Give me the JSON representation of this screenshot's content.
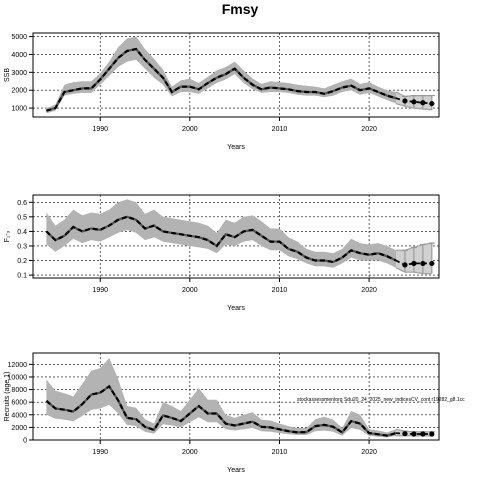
{
  "figure": {
    "title": "Fmsy",
    "annotation": "stockassessmentorg Sdu20_24_2025_new_indicesCV_cont r19282_g8.1cc"
  },
  "chart_data": [
    {
      "type": "line",
      "panel": "ssb",
      "xlabel": "Years",
      "ylabel": "SSB",
      "xlim": [
        1982.5,
        2027.8
      ],
      "ylim": [
        500,
        5200
      ],
      "xticks": [
        1990,
        2000,
        2010,
        2020
      ],
      "yticks": [
        1000,
        2000,
        3000,
        4000,
        5000
      ],
      "grid": true,
      "x": [
        1984,
        1985,
        1986,
        1987,
        1988,
        1989,
        1990,
        1991,
        1992,
        1993,
        1994,
        1995,
        1996,
        1997,
        1998,
        1999,
        2000,
        2001,
        2002,
        2003,
        2004,
        2005,
        2006,
        2007,
        2008,
        2009,
        2010,
        2011,
        2012,
        2013,
        2014,
        2015,
        2016,
        2017,
        2018,
        2019,
        2020,
        2021,
        2022,
        2023
      ],
      "series": [
        {
          "role": "estimate",
          "values": [
            850,
            1000,
            1900,
            2000,
            2100,
            2100,
            2600,
            3200,
            3800,
            4200,
            4300,
            3700,
            3200,
            2700,
            1900,
            2200,
            2200,
            2050,
            2400,
            2700,
            2900,
            3200,
            2700,
            2300,
            2050,
            2150,
            2100,
            2050,
            1950,
            1900,
            1900,
            1800,
            1950,
            2150,
            2250,
            2000,
            2100,
            1900,
            1700,
            1550
          ]
        },
        {
          "role": "lower",
          "values": [
            700,
            850,
            1700,
            1800,
            1850,
            1850,
            2300,
            2800,
            3300,
            3600,
            3700,
            3200,
            2700,
            2300,
            1650,
            1900,
            1900,
            1800,
            2100,
            2400,
            2600,
            2900,
            2400,
            2050,
            1850,
            1900,
            1900,
            1850,
            1750,
            1700,
            1700,
            1600,
            1700,
            1900,
            2000,
            1750,
            1850,
            1650,
            1450,
            1250
          ]
        },
        {
          "role": "upper",
          "values": [
            1000,
            1200,
            2300,
            2450,
            2500,
            2500,
            2950,
            3600,
            4400,
            4900,
            5000,
            4300,
            3750,
            3150,
            2200,
            2550,
            2650,
            2400,
            2750,
            3100,
            3300,
            3600,
            3100,
            2650,
            2350,
            2500,
            2450,
            2400,
            2300,
            2250,
            2200,
            2100,
            2300,
            2500,
            2650,
            2350,
            2450,
            2200,
            2000,
            1900
          ]
        }
      ],
      "projection": {
        "x": [
          2024,
          2025,
          2026,
          2027
        ],
        "values": [
          1400,
          1350,
          1300,
          1250
        ],
        "lower": [
          1100,
          1000,
          950,
          900
        ],
        "upper": [
          1650,
          1700,
          1700,
          1700
        ]
      }
    },
    {
      "type": "line",
      "panel": "fbar",
      "xlabel": "Years",
      "ylabel": "F₁-₃",
      "xlim": [
        1982.5,
        2027.8
      ],
      "ylim": [
        0.08,
        0.65
      ],
      "xticks": [
        1990,
        2000,
        2010,
        2020
      ],
      "yticks": [
        0.1,
        0.2,
        0.3,
        0.4,
        0.5,
        0.6
      ],
      "grid": true,
      "x": [
        1984,
        1985,
        1986,
        1987,
        1988,
        1989,
        1990,
        1991,
        1992,
        1993,
        1994,
        1995,
        1996,
        1997,
        1998,
        1999,
        2000,
        2001,
        2002,
        2003,
        2004,
        2005,
        2006,
        2007,
        2008,
        2009,
        2010,
        2011,
        2012,
        2013,
        2014,
        2015,
        2016,
        2017,
        2018,
        2019,
        2020,
        2021,
        2022,
        2023
      ],
      "series": [
        {
          "role": "estimate",
          "values": [
            0.4,
            0.34,
            0.37,
            0.43,
            0.4,
            0.42,
            0.41,
            0.44,
            0.48,
            0.5,
            0.48,
            0.42,
            0.44,
            0.4,
            0.39,
            0.38,
            0.37,
            0.36,
            0.34,
            0.3,
            0.38,
            0.36,
            0.4,
            0.41,
            0.37,
            0.33,
            0.33,
            0.28,
            0.26,
            0.22,
            0.2,
            0.2,
            0.19,
            0.22,
            0.27,
            0.25,
            0.24,
            0.25,
            0.23,
            0.2
          ]
        },
        {
          "role": "lower",
          "values": [
            0.31,
            0.26,
            0.3,
            0.35,
            0.32,
            0.34,
            0.33,
            0.36,
            0.39,
            0.41,
            0.39,
            0.34,
            0.36,
            0.33,
            0.32,
            0.31,
            0.3,
            0.29,
            0.28,
            0.25,
            0.31,
            0.3,
            0.33,
            0.34,
            0.3,
            0.27,
            0.27,
            0.23,
            0.21,
            0.18,
            0.16,
            0.16,
            0.15,
            0.18,
            0.22,
            0.2,
            0.2,
            0.2,
            0.18,
            0.15
          ]
        },
        {
          "role": "upper",
          "values": [
            0.53,
            0.44,
            0.48,
            0.55,
            0.51,
            0.53,
            0.52,
            0.55,
            0.6,
            0.62,
            0.6,
            0.52,
            0.55,
            0.5,
            0.49,
            0.48,
            0.47,
            0.46,
            0.44,
            0.39,
            0.48,
            0.46,
            0.5,
            0.51,
            0.47,
            0.42,
            0.42,
            0.36,
            0.33,
            0.28,
            0.26,
            0.26,
            0.25,
            0.28,
            0.35,
            0.32,
            0.31,
            0.32,
            0.3,
            0.27
          ]
        }
      ],
      "projection": {
        "x": [
          2024,
          2025,
          2026,
          2027
        ],
        "values": [
          0.17,
          0.18,
          0.18,
          0.18
        ],
        "lower": [
          0.12,
          0.12,
          0.11,
          0.11
        ],
        "upper": [
          0.27,
          0.29,
          0.31,
          0.32
        ]
      }
    },
    {
      "type": "line",
      "panel": "recruits",
      "xlabel": "Years",
      "ylabel": "Recruits (age 1)",
      "xlim": [
        1982.5,
        2027.8
      ],
      "ylim": [
        0,
        13800
      ],
      "xticks": [
        1990,
        2000,
        2010,
        2020
      ],
      "yticks": [
        0,
        2000,
        4000,
        6000,
        8000,
        10000,
        12000
      ],
      "grid": true,
      "x": [
        1984,
        1985,
        1986,
        1987,
        1988,
        1989,
        1990,
        1991,
        1992,
        1993,
        1994,
        1995,
        1996,
        1997,
        1998,
        1999,
        2000,
        2001,
        2002,
        2003,
        2004,
        2005,
        2006,
        2007,
        2008,
        2009,
        2010,
        2011,
        2012,
        2013,
        2014,
        2015,
        2016,
        2017,
        2018,
        2019,
        2020,
        2021,
        2022,
        2023
      ],
      "series": [
        {
          "role": "estimate",
          "values": [
            6200,
            5000,
            4800,
            4500,
            5700,
            7200,
            7500,
            8500,
            6300,
            3500,
            3300,
            2100,
            1600,
            3900,
            3500,
            3000,
            4200,
            5400,
            4200,
            4200,
            2600,
            2300,
            2600,
            2900,
            2100,
            2000,
            1700,
            1400,
            1200,
            1250,
            2200,
            2400,
            2100,
            1200,
            3000,
            2600,
            1100,
            900,
            700,
            1100
          ]
        },
        {
          "role": "lower",
          "values": [
            4000,
            3400,
            3200,
            3000,
            3800,
            4800,
            5000,
            5600,
            4200,
            2400,
            2200,
            1300,
            1000,
            2500,
            2300,
            2000,
            2800,
            3600,
            2800,
            2800,
            1700,
            1500,
            1700,
            1900,
            1400,
            1300,
            1100,
            900,
            800,
            800,
            1400,
            1500,
            1300,
            700,
            1900,
            1600,
            650,
            500,
            400,
            650
          ]
        },
        {
          "role": "upper",
          "values": [
            9600,
            7800,
            7400,
            6900,
            8900,
            11000,
            11400,
            13000,
            9700,
            5400,
            5100,
            3300,
            2600,
            6000,
            5400,
            4600,
            6400,
            8200,
            6400,
            6400,
            4000,
            3500,
            4000,
            4400,
            3200,
            3100,
            2600,
            2200,
            1900,
            1900,
            3300,
            3700,
            3200,
            1900,
            4600,
            4000,
            1700,
            1500,
            1200,
            1700
          ]
        }
      ],
      "projection": {
        "x": [
          2024,
          2025,
          2026,
          2027
        ],
        "values": [
          1000,
          950,
          950,
          950
        ],
        "lower": [
          700,
          650,
          650,
          650
        ],
        "upper": [
          1400,
          1300,
          1300,
          1300
        ]
      }
    }
  ]
}
